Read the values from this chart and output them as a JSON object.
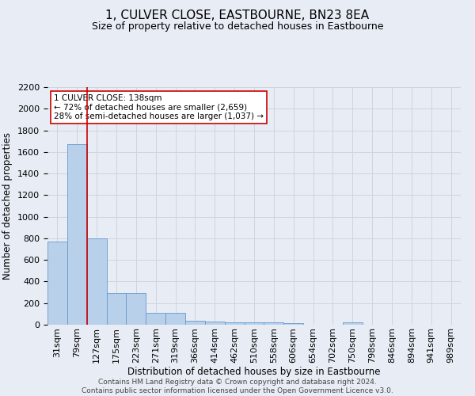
{
  "title": "1, CULVER CLOSE, EASTBOURNE, BN23 8EA",
  "subtitle": "Size of property relative to detached houses in Eastbourne",
  "xlabel": "Distribution of detached houses by size in Eastbourne",
  "ylabel": "Number of detached properties",
  "bar_labels": [
    "31sqm",
    "79sqm",
    "127sqm",
    "175sqm",
    "223sqm",
    "271sqm",
    "319sqm",
    "366sqm",
    "414sqm",
    "462sqm",
    "510sqm",
    "558sqm",
    "606sqm",
    "654sqm",
    "702sqm",
    "750sqm",
    "798sqm",
    "846sqm",
    "894sqm",
    "941sqm",
    "989sqm"
  ],
  "bar_values": [
    770,
    1670,
    800,
    295,
    295,
    110,
    110,
    40,
    30,
    25,
    22,
    20,
    18,
    0,
    0,
    20,
    0,
    0,
    0,
    0,
    0
  ],
  "bar_color": "#b8d0ea",
  "bar_edge_color": "#6699cc",
  "grid_color": "#cdd5e0",
  "background_color": "#e8edf5",
  "red_line_index": 2,
  "red_line_color": "#cc0000",
  "annotation_text": "1 CULVER CLOSE: 138sqm\n← 72% of detached houses are smaller (2,659)\n28% of semi-detached houses are larger (1,037) →",
  "annotation_box_color": "#ffffff",
  "annotation_border_color": "#cc0000",
  "ylim": [
    0,
    2200
  ],
  "yticks": [
    0,
    200,
    400,
    600,
    800,
    1000,
    1200,
    1400,
    1600,
    1800,
    2000,
    2200
  ],
  "footer": "Contains HM Land Registry data © Crown copyright and database right 2024.\nContains public sector information licensed under the Open Government Licence v3.0.",
  "title_fontsize": 11,
  "subtitle_fontsize": 9,
  "xlabel_fontsize": 8.5,
  "ylabel_fontsize": 8.5,
  "tick_fontsize": 8,
  "annotation_fontsize": 7.5,
  "footer_fontsize": 6.5
}
